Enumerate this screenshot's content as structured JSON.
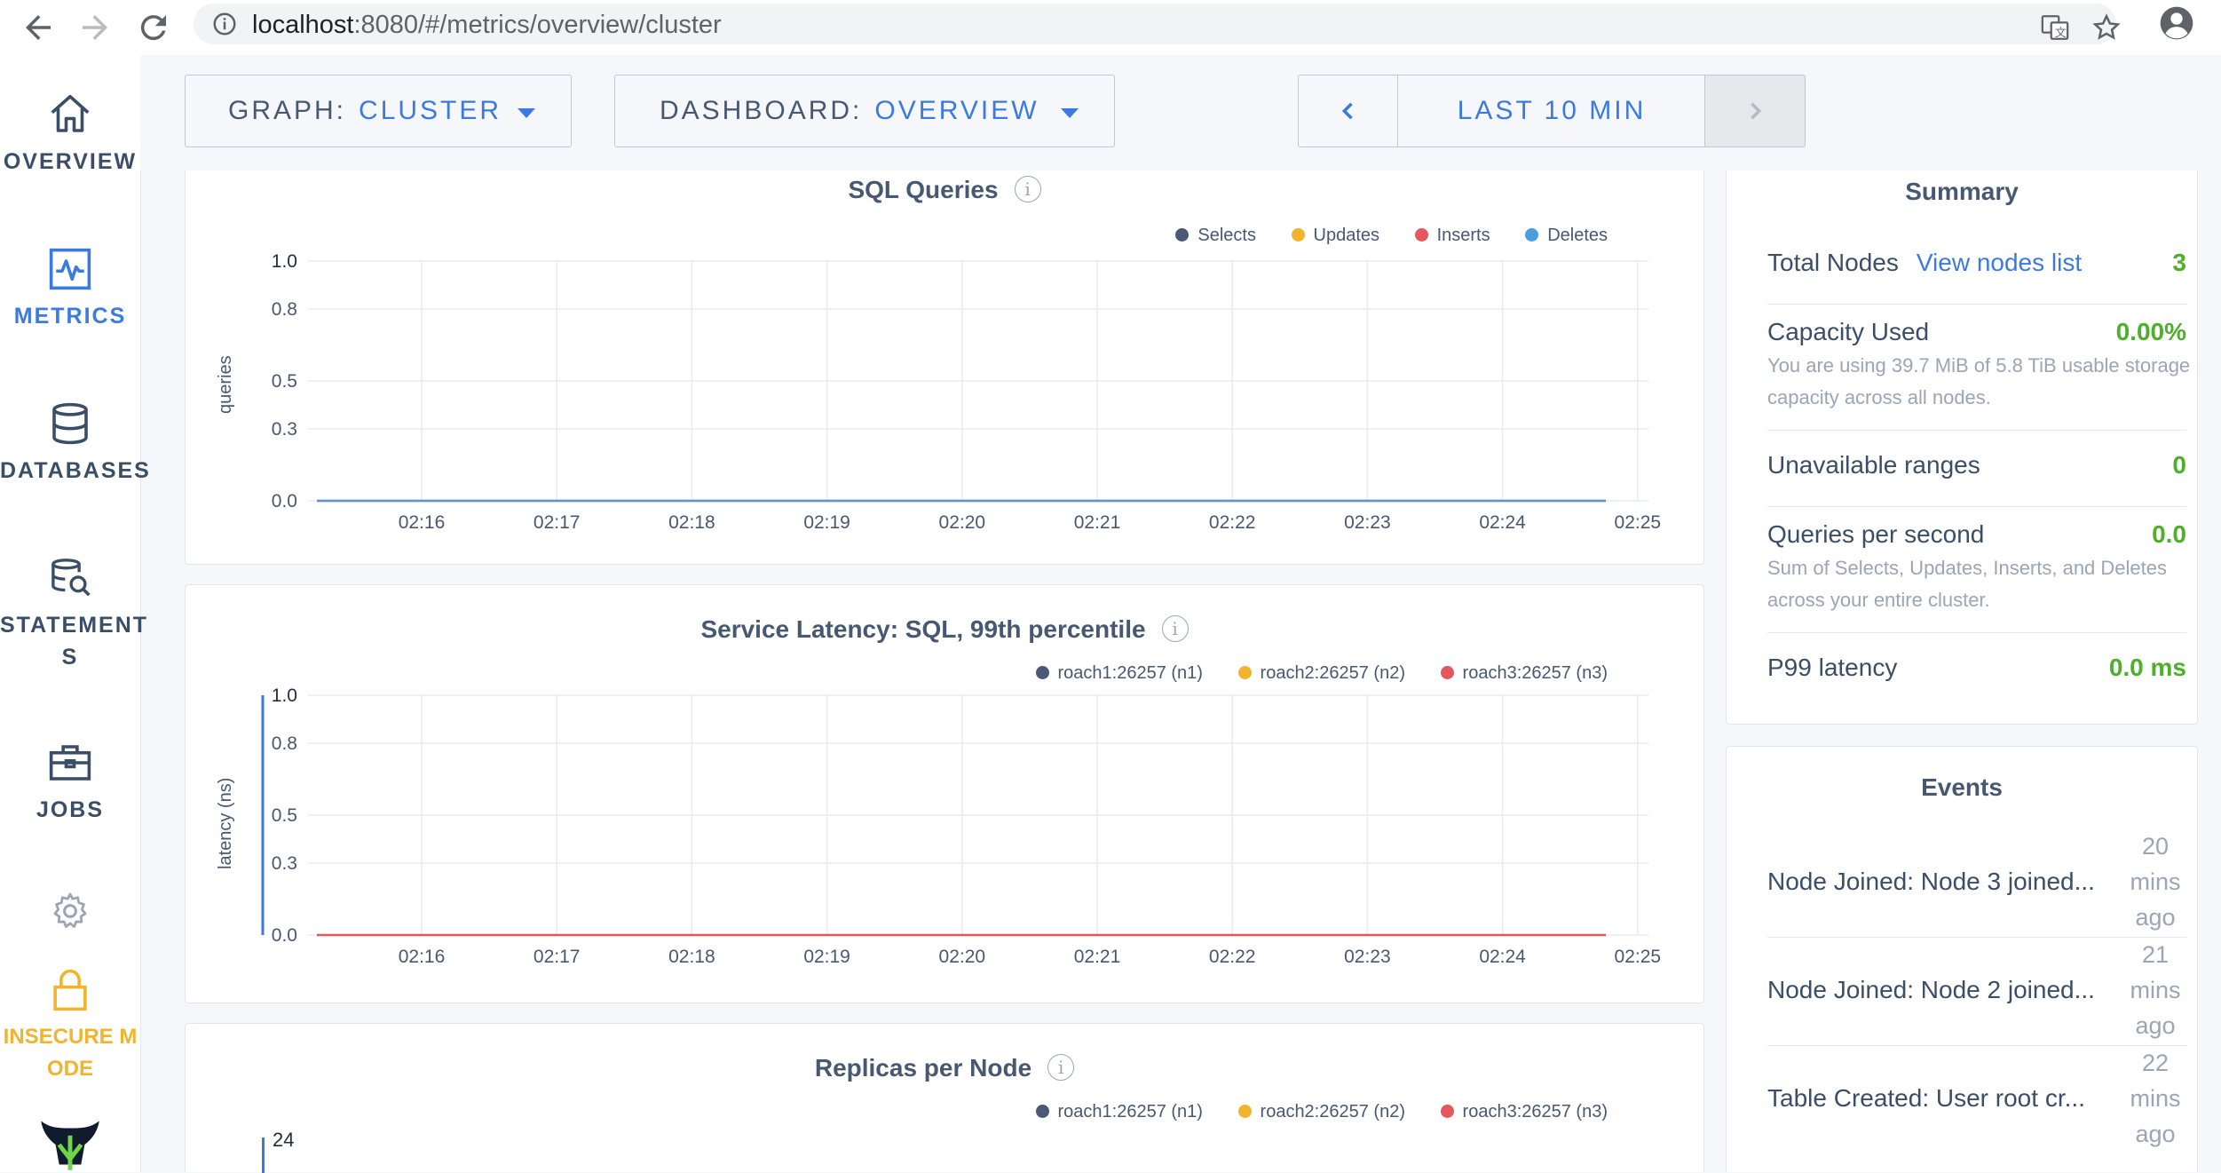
{
  "browser": {
    "url_host": "localhost",
    "url_path": ":8080/#/metrics/overview/cluster"
  },
  "sidebar": {
    "items": [
      {
        "label": "OVERVIEW",
        "icon": "home-icon"
      },
      {
        "label": "METRICS",
        "icon": "metrics-icon"
      },
      {
        "label": "DATABASES",
        "icon": "database-icon"
      },
      {
        "label": "STATEMENT",
        "label2": "S",
        "icon": "statements-icon"
      },
      {
        "label": "JOBS",
        "icon": "briefcase-icon"
      }
    ],
    "settings_icon": "gear-icon",
    "insecure_label": "INSECURE M",
    "insecure_label2": "ODE",
    "logo_icon": "cockroach-logo-icon"
  },
  "toolbar": {
    "graph_label": "GRAPH:",
    "graph_value": "CLUSTER",
    "dashboard_label": "DASHBOARD:",
    "dashboard_value": "OVERVIEW",
    "time_label": "LAST 10 MIN"
  },
  "charts": {
    "sql_queries": {
      "title": "SQL Queries",
      "legend": [
        {
          "name": "Selects",
          "color": "#4b5a74"
        },
        {
          "name": "Updates",
          "color": "#f0b52d"
        },
        {
          "name": "Inserts",
          "color": "#e5575f"
        },
        {
          "name": "Deletes",
          "color": "#4a9ee0"
        }
      ]
    },
    "service_latency": {
      "title": "Service Latency: SQL, 99th percentile",
      "legend": [
        {
          "name": "roach1:26257 (n1)",
          "color": "#4b5a74"
        },
        {
          "name": "roach2:26257 (n2)",
          "color": "#f0b52d"
        },
        {
          "name": "roach3:26257 (n3)",
          "color": "#e5575f"
        }
      ]
    },
    "replicas": {
      "title": "Replicas per Node",
      "legend": [
        {
          "name": "roach1:26257 (n1)",
          "color": "#4b5a74"
        },
        {
          "name": "roach2:26257 (n2)",
          "color": "#f0b52d"
        },
        {
          "name": "roach3:26257 (n3)",
          "color": "#e5575f"
        }
      ],
      "first_tick": "24"
    }
  },
  "chart_data": [
    {
      "type": "line",
      "title": "SQL Queries",
      "ylabel": "queries",
      "xlabel": "",
      "x": [
        "02:16",
        "02:17",
        "02:18",
        "02:19",
        "02:20",
        "02:21",
        "02:22",
        "02:23",
        "02:24",
        "02:25"
      ],
      "y_ticks": [
        "0.0",
        "0.3",
        "0.5",
        "0.8",
        "1.0"
      ],
      "ylim": [
        0,
        1
      ],
      "series": [
        {
          "name": "Selects",
          "values": [
            0,
            0,
            0,
            0,
            0,
            0,
            0,
            0,
            0,
            0
          ]
        },
        {
          "name": "Updates",
          "values": [
            0,
            0,
            0,
            0,
            0,
            0,
            0,
            0,
            0,
            0
          ]
        },
        {
          "name": "Inserts",
          "values": [
            0,
            0,
            0,
            0,
            0,
            0,
            0,
            0,
            0,
            0
          ]
        },
        {
          "name": "Deletes",
          "values": [
            0,
            0,
            0,
            0,
            0,
            0,
            0,
            0,
            0,
            0
          ]
        }
      ],
      "grid": true,
      "legend": "top-right"
    },
    {
      "type": "line",
      "title": "Service Latency: SQL, 99th percentile",
      "ylabel": "latency (ns)",
      "xlabel": "",
      "x": [
        "02:16",
        "02:17",
        "02:18",
        "02:19",
        "02:20",
        "02:21",
        "02:22",
        "02:23",
        "02:24",
        "02:25"
      ],
      "y_ticks": [
        "0.0",
        "0.3",
        "0.5",
        "0.8",
        "1.0"
      ],
      "ylim": [
        0,
        1
      ],
      "series": [
        {
          "name": "roach1:26257 (n1)",
          "values": [
            0,
            0,
            0,
            0,
            0,
            0,
            0,
            0,
            0,
            0
          ]
        },
        {
          "name": "roach2:26257 (n2)",
          "values": [
            0,
            0,
            0,
            0,
            0,
            0,
            0,
            0,
            0,
            0
          ]
        },
        {
          "name": "roach3:26257 (n3)",
          "values": [
            0,
            0,
            0,
            0,
            0,
            0,
            0,
            0,
            0,
            0
          ]
        }
      ],
      "grid": true,
      "legend": "top-right"
    }
  ],
  "summary": {
    "title": "Summary",
    "total_nodes_label": "Total Nodes",
    "view_nodes_link": "View nodes list",
    "total_nodes_value": "3",
    "capacity_label": "Capacity Used",
    "capacity_value": "0.00%",
    "capacity_desc": "You are using 39.7 MiB of 5.8 TiB usable storage capacity across all nodes.",
    "unavailable_label": "Unavailable ranges",
    "unavailable_value": "0",
    "qps_label": "Queries per second",
    "qps_value": "0.0",
    "qps_desc": "Sum of Selects, Updates, Inserts, and Deletes across your entire cluster.",
    "p99_label": "P99 latency",
    "p99_value": "0.0 ms"
  },
  "events": {
    "title": "Events",
    "items": [
      {
        "text": "Node Joined: Node 3 joined...",
        "ago": [
          "20",
          "mins",
          "ago"
        ]
      },
      {
        "text": "Node Joined: Node 2 joined...",
        "ago": [
          "21",
          "mins",
          "ago"
        ]
      },
      {
        "text": "Table Created: User root cr...",
        "ago": [
          "22",
          "mins",
          "ago"
        ]
      }
    ]
  }
}
